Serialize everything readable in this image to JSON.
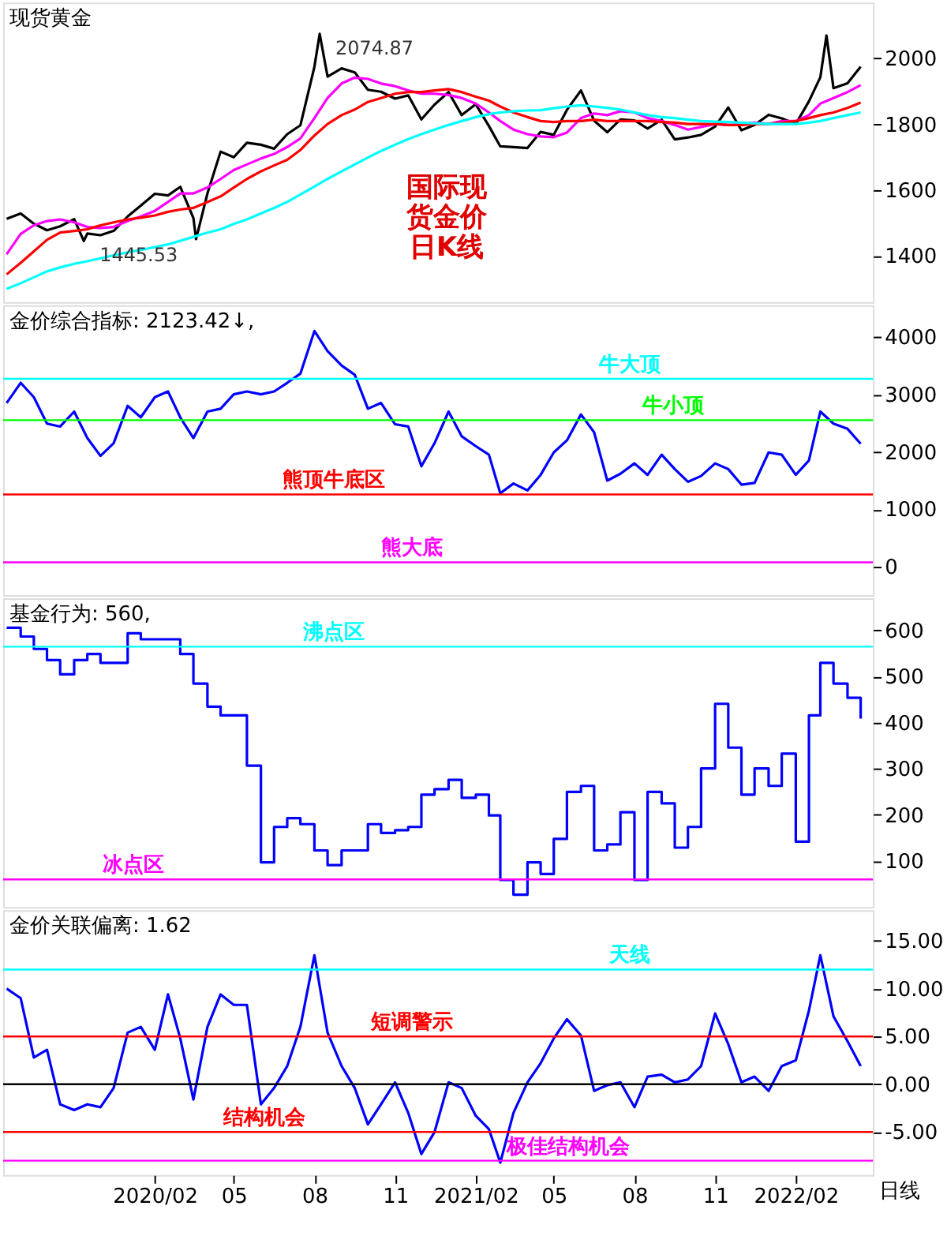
{
  "chart_data": [
    {
      "type": "line",
      "title": "现货黄金",
      "xlim": [
        "2019-08-12",
        "2022-04-30"
      ],
      "ylim": [
        1260,
        2170
      ],
      "yticks": [
        1400,
        1600,
        1800,
        2000
      ],
      "tick_labels": "y",
      "x": [
        "2019-08-16",
        "2019-09-01",
        "2019-09-16",
        "2019-10-01",
        "2019-10-16",
        "2019-11-01",
        "2019-11-16",
        "2019-12-01",
        "2019-12-16",
        "2020-01-01",
        "2020-01-16",
        "2020-02-01",
        "2020-02-16",
        "2020-03-01",
        "2020-03-16",
        "2020-04-01",
        "2020-04-16",
        "2020-05-01",
        "2020-05-16",
        "2020-06-01",
        "2020-06-16",
        "2020-07-01",
        "2020-07-16",
        "2020-08-01",
        "2020-08-16",
        "2020-09-01",
        "2020-09-16",
        "2020-10-01",
        "2020-10-16",
        "2020-11-01",
        "2020-11-16",
        "2020-12-01",
        "2020-12-16",
        "2021-01-01",
        "2021-01-16",
        "2021-02-01",
        "2021-02-16",
        "2021-03-01",
        "2021-03-16",
        "2021-04-01",
        "2021-04-16",
        "2021-05-01",
        "2021-05-16",
        "2021-06-01",
        "2021-06-16",
        "2021-07-01",
        "2021-07-16",
        "2021-08-01",
        "2021-08-16",
        "2021-09-01",
        "2021-09-16",
        "2021-10-01",
        "2021-10-16",
        "2021-11-01",
        "2021-11-16",
        "2021-12-01",
        "2021-12-16",
        "2022-01-01",
        "2022-01-16",
        "2022-02-01",
        "2022-02-16",
        "2022-03-01",
        "2022-03-16",
        "2022-04-01",
        "2022-04-16"
      ],
      "series": [
        {
          "color": "#000000",
          "x": [
            "2019-08-16",
            "2019-09-01",
            "2019-09-16",
            "2019-10-01",
            "2019-10-16",
            "2019-11-01",
            "2019-11-12",
            "2019-11-16",
            "2019-12-01",
            "2019-12-16",
            "2020-01-01",
            "2020-01-16",
            "2020-02-01",
            "2020-02-16",
            "2020-03-01",
            "2020-03-16",
            "2020-03-19",
            "2020-04-01",
            "2020-04-16",
            "2020-05-01",
            "2020-05-16",
            "2020-06-01",
            "2020-06-16",
            "2020-07-01",
            "2020-07-16",
            "2020-08-01",
            "2020-08-07",
            "2020-08-16",
            "2020-09-01",
            "2020-09-16",
            "2020-10-01",
            "2020-10-16",
            "2020-11-01",
            "2020-11-16",
            "2020-12-01",
            "2020-12-16",
            "2021-01-01",
            "2021-01-16",
            "2021-02-01",
            "2021-02-16",
            "2021-03-01",
            "2021-03-16",
            "2021-04-01",
            "2021-04-16",
            "2021-05-01",
            "2021-05-16",
            "2021-06-01",
            "2021-06-16",
            "2021-07-01",
            "2021-07-16",
            "2021-08-01",
            "2021-08-16",
            "2021-09-01",
            "2021-09-16",
            "2021-10-01",
            "2021-10-16",
            "2021-11-01",
            "2021-11-16",
            "2021-12-01",
            "2021-12-16",
            "2022-01-01",
            "2022-01-16",
            "2022-02-01",
            "2022-02-16",
            "2022-03-01",
            "2022-03-08",
            "2022-03-16",
            "2022-04-01",
            "2022-04-16"
          ],
          "values": [
            1513,
            1529,
            1498,
            1478,
            1490,
            1512,
            1445.53,
            1468,
            1463,
            1476,
            1520,
            1553,
            1589,
            1584,
            1610,
            1515,
            1451,
            1590,
            1717,
            1700,
            1744,
            1738,
            1726,
            1770,
            1797,
            1975,
            2074.87,
            1945,
            1970,
            1958,
            1905,
            1899,
            1878,
            1888,
            1815,
            1860,
            1898,
            1828,
            1861,
            1795,
            1733,
            1731,
            1728,
            1777,
            1768,
            1844,
            1903,
            1811,
            1776,
            1815,
            1812,
            1787,
            1814,
            1754,
            1760,
            1768,
            1793,
            1851,
            1782,
            1798,
            1829,
            1818,
            1801,
            1870,
            1943,
            2070,
            1910,
            1925,
            1975
          ]
        },
        {
          "color": "#ff00ff",
          "values": [
            1405,
            1467,
            1493,
            1506,
            1511,
            1502,
            1488,
            1485,
            1488,
            1506,
            1520,
            1537,
            1564,
            1590,
            1590,
            1608,
            1634,
            1661,
            1678,
            1696,
            1710,
            1731,
            1757,
            1819,
            1880,
            1924,
            1942,
            1938,
            1924,
            1916,
            1903,
            1893,
            1893,
            1889,
            1880,
            1863,
            1836,
            1810,
            1784,
            1770,
            1763,
            1761,
            1775,
            1819,
            1833,
            1828,
            1840,
            1836,
            1819,
            1810,
            1798,
            1784,
            1792,
            1801,
            1798,
            1801,
            1805,
            1801,
            1810,
            1810,
            1828,
            1863,
            1880,
            1898,
            1919
          ]
        },
        {
          "color": "#ff0000",
          "values": [
            1344,
            1379,
            1414,
            1449,
            1471,
            1476,
            1481,
            1493,
            1502,
            1511,
            1516,
            1523,
            1534,
            1541,
            1546,
            1564,
            1581,
            1608,
            1634,
            1657,
            1675,
            1692,
            1722,
            1766,
            1801,
            1828,
            1845,
            1868,
            1880,
            1893,
            1898,
            1898,
            1903,
            1907,
            1898,
            1884,
            1872,
            1854,
            1836,
            1822,
            1810,
            1807,
            1810,
            1810,
            1814,
            1810,
            1810,
            1810,
            1810,
            1807,
            1805,
            1801,
            1801,
            1801,
            1798,
            1798,
            1801,
            1801,
            1805,
            1810,
            1819,
            1828,
            1836,
            1850,
            1866
          ]
        },
        {
          "color": "#00ffff",
          "values": [
            1300,
            1317,
            1335,
            1353,
            1365,
            1376,
            1384,
            1393,
            1402,
            1411,
            1418,
            1427,
            1435,
            1446,
            1458,
            1471,
            1481,
            1497,
            1511,
            1529,
            1546,
            1564,
            1587,
            1611,
            1634,
            1657,
            1678,
            1699,
            1719,
            1738,
            1755,
            1770,
            1784,
            1798,
            1810,
            1822,
            1831,
            1836,
            1840,
            1842,
            1843,
            1849,
            1854,
            1858,
            1854,
            1850,
            1845,
            1836,
            1828,
            1822,
            1819,
            1814,
            1810,
            1808,
            1807,
            1805,
            1803,
            1801,
            1801,
            1801,
            1805,
            1810,
            1819,
            1828,
            1836
          ]
        }
      ],
      "annotations": [
        {
          "text": "2074.87",
          "x": "2020-08-07",
          "y": 2074.87
        },
        {
          "text": "1445.53",
          "x": "2019-11-12",
          "y": 1445.53
        },
        "国际现货金价日K线"
      ]
    },
    {
      "type": "line",
      "title": "金价综合指标: 2123.42↓,",
      "xlim": [
        "2019-08-12",
        "2022-04-30"
      ],
      "ylim": [
        -490,
        4550
      ],
      "yticks": [
        0,
        1000,
        2000,
        3000,
        4000
      ],
      "tick_labels": "y",
      "x": [
        "2019-08-16",
        "2019-09-01",
        "2019-09-16",
        "2019-10-01",
        "2019-10-16",
        "2019-11-01",
        "2019-11-16",
        "2019-12-01",
        "2019-12-16",
        "2020-01-01",
        "2020-01-16",
        "2020-02-01",
        "2020-02-16",
        "2020-03-01",
        "2020-03-16",
        "2020-04-01",
        "2020-04-16",
        "2020-05-01",
        "2020-05-16",
        "2020-06-01",
        "2020-06-16",
        "2020-07-01",
        "2020-07-16",
        "2020-08-01",
        "2020-08-16",
        "2020-09-01",
        "2020-09-16",
        "2020-10-01",
        "2020-10-16",
        "2020-11-01",
        "2020-11-16",
        "2020-12-01",
        "2020-12-16",
        "2021-01-01",
        "2021-01-16",
        "2021-02-01",
        "2021-02-16",
        "2021-03-01",
        "2021-03-16",
        "2021-04-01",
        "2021-04-16",
        "2021-05-01",
        "2021-05-16",
        "2021-06-01",
        "2021-06-16",
        "2021-07-01",
        "2021-07-16",
        "2021-08-01",
        "2021-08-16",
        "2021-09-01",
        "2021-09-16",
        "2021-10-01",
        "2021-10-16",
        "2021-11-01",
        "2021-11-16",
        "2021-12-01",
        "2021-12-16",
        "2022-01-01",
        "2022-01-16",
        "2022-02-01",
        "2022-02-16",
        "2022-03-01",
        "2022-03-16",
        "2022-04-01",
        "2022-04-16"
      ],
      "series": [
        {
          "color": "#0000ff",
          "values": [
            2850,
            3200,
            2950,
            2490,
            2440,
            2700,
            2240,
            1930,
            2150,
            2800,
            2600,
            2950,
            3050,
            2600,
            2240,
            2700,
            2750,
            3000,
            3050,
            3000,
            3050,
            3200,
            3360,
            4100,
            3750,
            3500,
            3340,
            2750,
            2850,
            2480,
            2440,
            1750,
            2150,
            2700,
            2270,
            2100,
            1950,
            1280,
            1450,
            1330,
            1600,
            1990,
            2200,
            2650,
            2340,
            1500,
            1620,
            1800,
            1600,
            1950,
            1700,
            1480,
            1580,
            1800,
            1700,
            1430,
            1460,
            1990,
            1950,
            1600,
            1850,
            2700,
            2490,
            2400,
            2140
          ]
        }
      ],
      "ref_lines": [
        {
          "axis": "y",
          "value": 3270,
          "label": "牛大顶",
          "color": "#00ffff"
        },
        {
          "axis": "y",
          "value": 2550,
          "label": "牛小顶",
          "color": "#00ff00"
        },
        {
          "axis": "y",
          "value": 1260,
          "label": "熊顶牛底区",
          "color": "#ff0000"
        },
        {
          "axis": "y",
          "value": 80,
          "label": "熊大底",
          "color": "#ff00ff"
        }
      ]
    },
    {
      "type": "step",
      "title": "基金行为: 560,",
      "xlim": [
        "2019-08-12",
        "2022-04-30"
      ],
      "ylim": [
        0,
        670
      ],
      "yticks": [
        100,
        200,
        300,
        400,
        500,
        600
      ],
      "tick_labels": "y",
      "x": [
        "2019-08-16",
        "2019-09-01",
        "2019-09-16",
        "2019-10-01",
        "2019-10-16",
        "2019-11-01",
        "2019-11-16",
        "2019-12-01",
        "2019-12-16",
        "2020-01-01",
        "2020-01-16",
        "2020-02-01",
        "2020-02-16",
        "2020-03-01",
        "2020-03-16",
        "2020-04-01",
        "2020-04-16",
        "2020-05-01",
        "2020-05-16",
        "2020-06-01",
        "2020-06-16",
        "2020-07-01",
        "2020-07-16",
        "2020-08-01",
        "2020-08-16",
        "2020-09-01",
        "2020-09-16",
        "2020-10-01",
        "2020-10-16",
        "2020-11-01",
        "2020-11-16",
        "2020-12-01",
        "2020-12-16",
        "2021-01-01",
        "2021-01-16",
        "2021-02-01",
        "2021-02-16",
        "2021-03-01",
        "2021-03-16",
        "2021-04-01",
        "2021-04-16",
        "2021-05-01",
        "2021-05-16",
        "2021-06-01",
        "2021-06-16",
        "2021-07-01",
        "2021-07-16",
        "2021-08-01",
        "2021-08-16",
        "2021-09-01",
        "2021-09-16",
        "2021-10-01",
        "2021-10-16",
        "2021-11-01",
        "2021-11-16",
        "2021-12-01",
        "2021-12-16",
        "2022-01-01",
        "2022-01-16",
        "2022-02-01",
        "2022-02-16",
        "2022-03-01",
        "2022-03-16",
        "2022-04-01",
        "2022-04-16"
      ],
      "series": [
        {
          "color": "#0000ff",
          "values": [
            606,
            587,
            560,
            536,
            505,
            536,
            549,
            530,
            530,
            594,
            581,
            581,
            581,
            549,
            485,
            435,
            416,
            416,
            307,
            97,
            174,
            193,
            180,
            123,
            91,
            123,
            123,
            180,
            161,
            167,
            174,
            244,
            256,
            276,
            237,
            244,
            199,
            59,
            27,
            97,
            72,
            148,
            250,
            263,
            123,
            136,
            206,
            59,
            250,
            225,
            129,
            174,
            301,
            441,
            346,
            244,
            301,
            263,
            333,
            142,
            416,
            530,
            485,
            454,
            409
          ]
        }
      ],
      "ref_lines": [
        {
          "axis": "y",
          "value": 565,
          "label": "沸点区",
          "color": "#00ffff"
        },
        {
          "axis": "y",
          "value": 60,
          "label": "冰点区",
          "color": "#ff00ff"
        }
      ]
    },
    {
      "type": "line",
      "title": "金价关联偏离: 1.62",
      "xlim": [
        "2019-08-12",
        "2022-04-30"
      ],
      "ylim": [
        -9.5,
        18.2
      ],
      "yticks": [
        {
          "value": -5,
          "label": "-5.00"
        },
        {
          "value": 0,
          "label": "0.00"
        },
        {
          "value": 5,
          "label": "5.00"
        },
        {
          "value": 10,
          "label": "10.00"
        },
        {
          "value": 15,
          "label": "15.00"
        }
      ],
      "xticks": [
        {
          "value": "2020-02-01",
          "label": "2020/02"
        },
        {
          "value": "2020-05-01",
          "label": "05"
        },
        {
          "value": "2020-08-01",
          "label": "08"
        },
        {
          "value": "2020-11-01",
          "label": "11"
        },
        {
          "value": "2021-02-01",
          "label": "2021/02"
        },
        {
          "value": "2021-05-01",
          "label": "05"
        },
        {
          "value": "2021-08-01",
          "label": "08"
        },
        {
          "value": "2021-11-01",
          "label": "11"
        },
        {
          "value": "2022-02-01",
          "label": "2022/02"
        }
      ],
      "x": [
        "2019-08-16",
        "2019-09-01",
        "2019-09-16",
        "2019-10-01",
        "2019-10-16",
        "2019-11-01",
        "2019-11-16",
        "2019-12-01",
        "2019-12-16",
        "2020-01-01",
        "2020-01-16",
        "2020-02-01",
        "2020-02-16",
        "2020-03-01",
        "2020-03-16",
        "2020-04-01",
        "2020-04-16",
        "2020-05-01",
        "2020-05-16",
        "2020-06-01",
        "2020-06-16",
        "2020-07-01",
        "2020-07-16",
        "2020-08-01",
        "2020-08-16",
        "2020-09-01",
        "2020-09-16",
        "2020-10-01",
        "2020-10-16",
        "2020-11-01",
        "2020-11-16",
        "2020-12-01",
        "2020-12-16",
        "2021-01-01",
        "2021-01-16",
        "2021-02-01",
        "2021-02-16",
        "2021-03-01",
        "2021-03-16",
        "2021-04-01",
        "2021-04-16",
        "2021-05-01",
        "2021-05-16",
        "2021-06-01",
        "2021-06-16",
        "2021-07-01",
        "2021-07-16",
        "2021-08-01",
        "2021-08-16",
        "2021-09-01",
        "2021-09-16",
        "2021-10-01",
        "2021-10-16",
        "2021-11-01",
        "2021-11-16",
        "2021-12-01",
        "2021-12-16",
        "2022-01-01",
        "2022-01-16",
        "2022-02-01",
        "2022-02-16",
        "2022-03-01",
        "2022-03-16",
        "2022-04-01",
        "2022-04-16"
      ],
      "series": [
        {
          "color": "#0000ff",
          "values": [
            10,
            9,
            2.8,
            3.6,
            -2.1,
            -2.7,
            -2.1,
            -2.4,
            -0.4,
            5.4,
            6,
            3.6,
            9.4,
            4.8,
            -1.6,
            6,
            9.4,
            8.3,
            8.3,
            -2.1,
            -0.4,
            1.9,
            6,
            13.5,
            5.4,
            1.9,
            -0.4,
            -4.2,
            -2.1,
            0.2,
            -3,
            -7.3,
            -5,
            0.2,
            -0.4,
            -3.3,
            -4.7,
            -8.2,
            -3,
            0.2,
            2.2,
            4.8,
            6.8,
            5.1,
            -0.7,
            -0.1,
            0.2,
            -2.4,
            0.8,
            1,
            0.2,
            0.5,
            1.9,
            7.4,
            4.2,
            0.2,
            0.8,
            -0.7,
            1.9,
            2.5,
            7.7,
            13.5,
            7.1,
            4.5,
            1.9
          ]
        }
      ],
      "ref_lines": [
        {
          "axis": "y",
          "value": 12,
          "label": "天线",
          "color": "#00ffff"
        },
        {
          "axis": "y",
          "value": 5,
          "label": "短调警示",
          "color": "#ff0000"
        },
        {
          "axis": "y",
          "value": 0,
          "label": null,
          "color": "#000000"
        },
        {
          "axis": "y",
          "value": -5,
          "label": "结构机会",
          "color": "#ff0000"
        },
        {
          "axis": "y",
          "value": -8,
          "label": "极佳结构机会",
          "color": "#ff00ff"
        }
      ],
      "annotations": [
        "日线"
      ]
    }
  ]
}
